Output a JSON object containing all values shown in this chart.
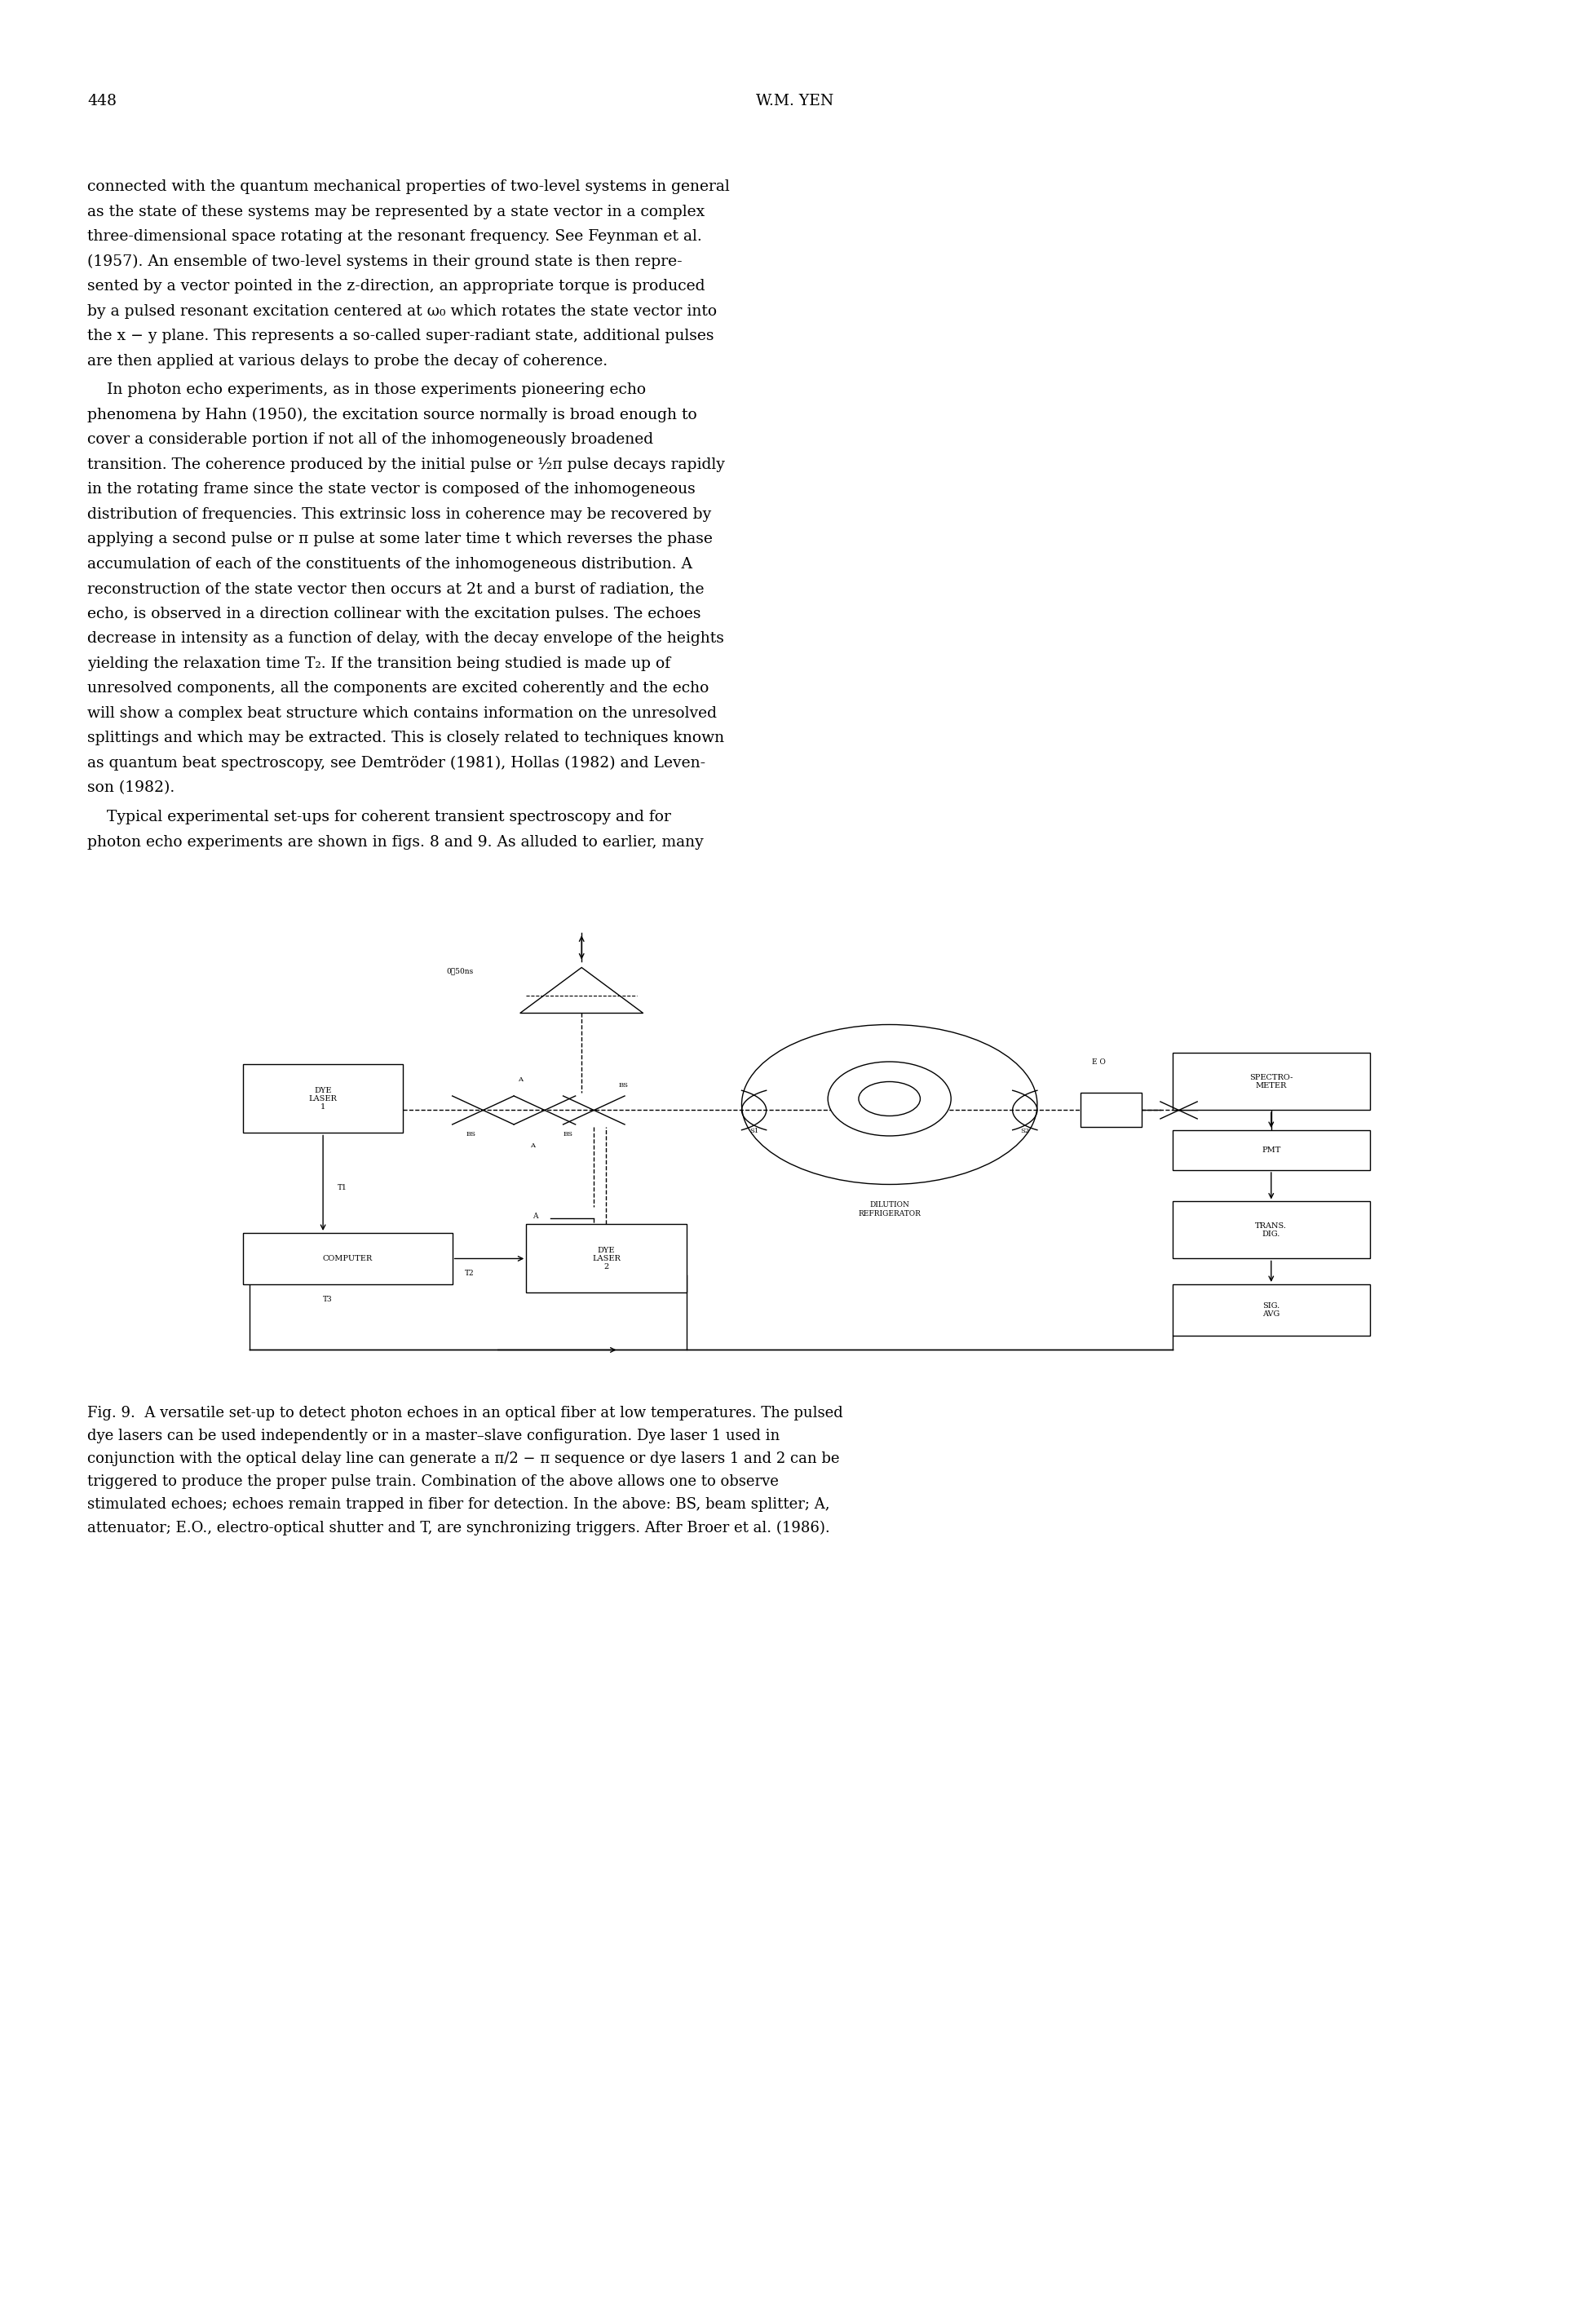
{
  "page_number": "448",
  "header_center": "W.M. YEN",
  "para1_lines": [
    "connected with the quantum mechanical properties of two-level systems in general",
    "as the state of these systems may be represented by a state vector in a complex",
    "three-dimensional space rotating at the resonant frequency. See Feynman et al.",
    "(1957). An ensemble of two-level systems in their ground state is then repre-",
    "sented by a vector pointed in the z-direction, an appropriate torque is produced",
    "by a pulsed resonant excitation centered at ω₀ which rotates the state vector into",
    "the x − y plane. This represents a so-called super-radiant state, additional pulses",
    "are then applied at various delays to probe the decay of coherence."
  ],
  "para2_lines": [
    "    In photon echo experiments, as in those experiments pioneering echo",
    "phenomena by Hahn (1950), the excitation source normally is broad enough to",
    "cover a considerable portion if not all of the inhomogeneously broadened",
    "transition. The coherence produced by the initial pulse or ½π pulse decays rapidly",
    "in the rotating frame since the state vector is composed of the inhomogeneous",
    "distribution of frequencies. This extrinsic loss in coherence may be recovered by",
    "applying a second pulse or π pulse at some later time t which reverses the phase",
    "accumulation of each of the constituents of the inhomogeneous distribution. A",
    "reconstruction of the state vector then occurs at 2t and a burst of radiation, the",
    "echo, is observed in a direction collinear with the excitation pulses. The echoes",
    "decrease in intensity as a function of delay, with the decay envelope of the heights",
    "yielding the relaxation time T₂. If the transition being studied is made up of",
    "unresolved components, all the components are excited coherently and the echo",
    "will show a complex beat structure which contains information on the unresolved",
    "splittings and which may be extracted. This is closely related to techniques known",
    "as quantum beat spectroscopy, see Demtröder (1981), Hollas (1982) and Leven-",
    "son (1982)."
  ],
  "para3_lines": [
    "    Typical experimental set-ups for coherent transient spectroscopy and for",
    "photon echo experiments are shown in figs. 8 and 9. As alluded to earlier, many"
  ],
  "caption_lines": [
    "Fig. 9.  A versatile set-up to detect photon echoes in an optical fiber at low temperatures. The pulsed",
    "dye lasers can be used independently or in a master–slave configuration. Dye laser 1 used in",
    "conjunction with the optical delay line can generate a π/2 − π sequence or dye lasers 1 and 2 can be",
    "triggered to produce the proper pulse train. Combination of the above allows one to observe",
    "stimulated echoes; echoes remain trapped in fiber for detection. In the above: BS, beam splitter; A,",
    "attenuator; E.O., electro-optical shutter and T, are synchronizing triggers. After Broer et al. (1986)."
  ],
  "bg_color": "#ffffff",
  "text_color": "#000000"
}
